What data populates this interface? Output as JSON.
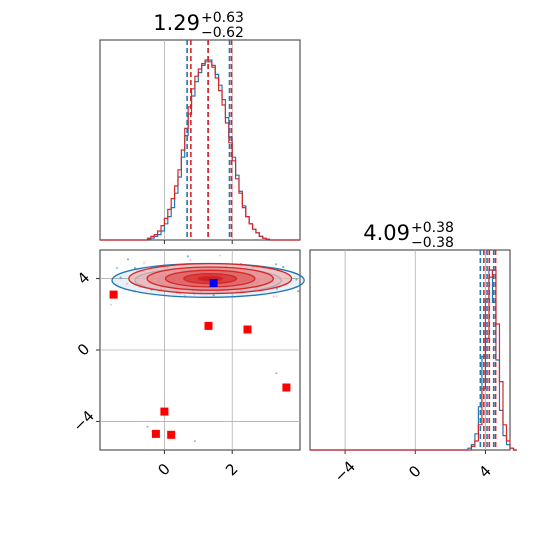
{
  "chart_data": {
    "type": "corner",
    "parameters": 2,
    "colors": {
      "blue": "#1f77b4",
      "red": "#d62728",
      "marker_blue": "#0000ff",
      "marker_red": "#ff0000",
      "grid": "#b0b0b0"
    },
    "titles": [
      {
        "base": "1.29",
        "plus": "+0.63",
        "minus": "−0.62"
      },
      {
        "base": "4.09",
        "plus": "+0.38",
        "minus": "−0.38"
      }
    ],
    "axes": {
      "x0": {
        "range": [
          -1.9,
          4.0
        ],
        "ticks": [
          0,
          2
        ],
        "tick_labels": [
          "0",
          "2"
        ],
        "grid": true
      },
      "x1": {
        "range": [
          -6.0,
          5.4
        ],
        "ticks": [
          -4,
          0,
          4
        ],
        "tick_labels": [
          "−4",
          "0",
          "4"
        ],
        "grid": true
      },
      "y1": {
        "range": [
          -5.6,
          5.6
        ],
        "ticks": [
          -4,
          0,
          4
        ],
        "tick_labels": [
          "−4",
          "0",
          "4"
        ],
        "grid": true
      }
    },
    "hist_x0": {
      "bin_edges_start": -1.9,
      "bin_width": 0.1,
      "blue": [
        0,
        0,
        0,
        0,
        0,
        0,
        0,
        0,
        0,
        0,
        0,
        0,
        0,
        0,
        0.5,
        1,
        2,
        3,
        5,
        9,
        13,
        18,
        26,
        35,
        46,
        58,
        70,
        80,
        88,
        93,
        97,
        99,
        100,
        97,
        92,
        86,
        78,
        68,
        57,
        46,
        36,
        27,
        19,
        13,
        9,
        6,
        4,
        2,
        1,
        0.5,
        0,
        0,
        0,
        0,
        0,
        0,
        0,
        0,
        0
      ],
      "red": [
        0,
        0,
        0,
        0,
        0,
        0,
        0,
        0,
        0,
        0,
        0,
        0,
        0,
        0,
        1,
        2,
        3,
        5,
        8,
        12,
        17,
        23,
        30,
        39,
        50,
        62,
        74,
        84,
        91,
        95,
        98,
        100,
        99,
        96,
        90,
        83,
        75,
        65,
        54,
        44,
        34,
        26,
        18,
        13,
        9,
        6,
        4,
        2,
        1,
        0.5,
        0,
        0,
        0,
        0,
        0,
        0,
        0,
        0,
        0
      ],
      "quantiles_blue": [
        0.67,
        1.29,
        1.92
      ],
      "quantiles_red": [
        0.78,
        1.29,
        1.98
      ]
    },
    "hist_x1": {
      "bin_edges_start": -6.0,
      "bin_width": 0.2,
      "blue": [
        0,
        0,
        0,
        0,
        0,
        0,
        0,
        0,
        0,
        0,
        0,
        0,
        0,
        0,
        0,
        0,
        0,
        0,
        0,
        0,
        0,
        0,
        0,
        0,
        0,
        0,
        0,
        0,
        0,
        0,
        0,
        0,
        0,
        0,
        0,
        0,
        0,
        0,
        0,
        0,
        0,
        0,
        0,
        0,
        0,
        1,
        3,
        9,
        24,
        52,
        84,
        100,
        82,
        50,
        22,
        8,
        3,
        1,
        0
      ],
      "red": [
        0,
        0,
        0,
        0,
        0,
        0,
        0,
        0,
        0,
        0,
        0,
        0,
        0,
        0,
        0,
        0,
        0,
        0,
        0,
        0,
        0,
        0,
        0,
        0,
        0,
        0,
        0,
        0,
        0,
        0,
        0,
        0,
        0,
        0,
        0,
        0,
        0,
        0,
        0,
        0,
        0,
        0,
        0,
        0,
        0,
        0,
        2,
        5,
        14,
        34,
        62,
        96,
        100,
        70,
        38,
        14,
        5,
        1,
        0
      ],
      "quantiles_blue": [
        3.71,
        4.09,
        4.47
      ],
      "quantiles_red": [
        3.91,
        4.22,
        4.58
      ]
    },
    "joint": {
      "blue_center": [
        1.29,
        3.9
      ],
      "blue_spread": [
        1.35,
        0.45
      ],
      "red_center": [
        1.35,
        4.0
      ],
      "red_spread": [
        1.2,
        0.42
      ],
      "blue_marker": [
        1.45,
        3.75
      ],
      "red_markers": [
        [
          -1.5,
          3.1
        ],
        [
          1.3,
          1.35
        ],
        [
          2.45,
          1.15
        ],
        [
          3.6,
          -2.1
        ],
        [
          0.0,
          -3.45
        ],
        [
          -0.25,
          -4.7
        ],
        [
          0.2,
          -4.75
        ]
      ]
    }
  }
}
